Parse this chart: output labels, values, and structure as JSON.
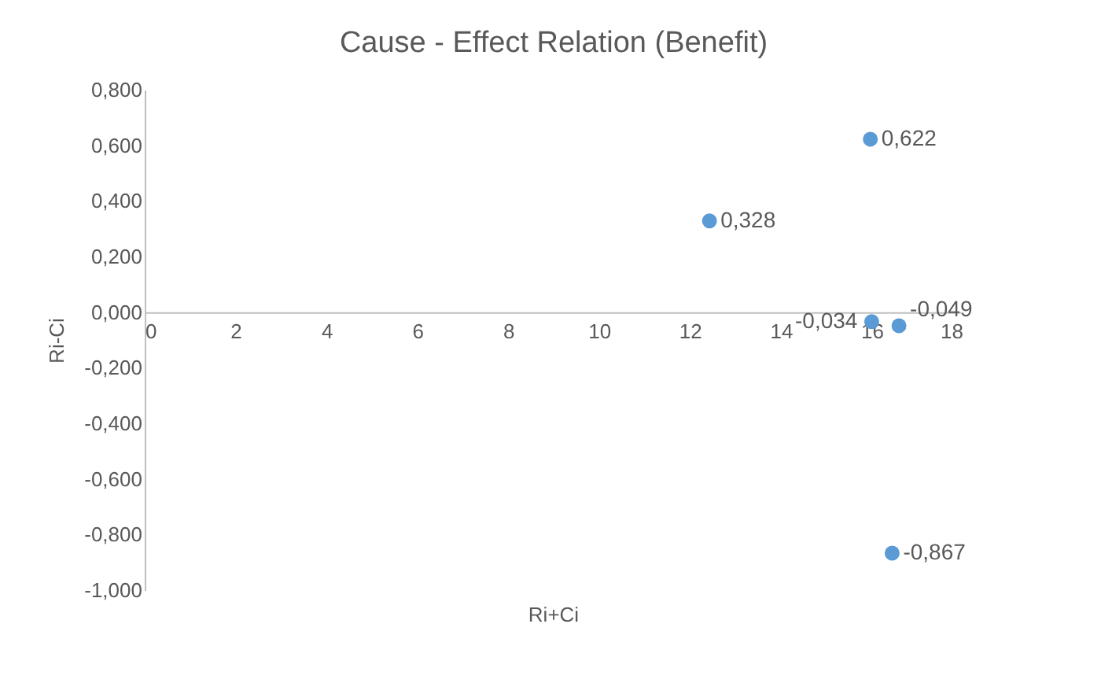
{
  "chart_data": {
    "type": "scatter",
    "title": "Cause - Effect Relation (Benefit)",
    "xlabel": "Ri+Ci",
    "ylabel": "Ri-Ci",
    "x": [
      12.43,
      15.97,
      16.0,
      16.6,
      16.45
    ],
    "series": [
      {
        "color": "#5b9bd5",
        "values": [
          0.328,
          0.622,
          -0.034,
          -0.049,
          -0.867
        ],
        "value_labels": [
          "0,328",
          "0,622",
          "-0,034",
          "-0,049",
          "-0,867"
        ]
      }
    ],
    "xlim": [
      0,
      18
    ],
    "xticks": [
      0,
      2,
      4,
      6,
      8,
      10,
      12,
      14,
      16,
      18
    ],
    "ylim": [
      -1.0,
      0.8
    ],
    "yticks": [
      {
        "value": -1.0,
        "label": "-1,000"
      },
      {
        "value": -0.8,
        "label": "-0,800"
      },
      {
        "value": -0.6,
        "label": "-0,600"
      },
      {
        "value": -0.4,
        "label": "-0,400"
      },
      {
        "value": -0.2,
        "label": "-0,200"
      },
      {
        "value": 0.0,
        "label": "0,000"
      },
      {
        "value": 0.2,
        "label": "0,200"
      },
      {
        "value": 0.4,
        "label": "0,400"
      },
      {
        "value": 0.6,
        "label": "0,600"
      },
      {
        "value": 0.8,
        "label": "0,800"
      }
    ],
    "grid": false,
    "marker": "circle"
  }
}
